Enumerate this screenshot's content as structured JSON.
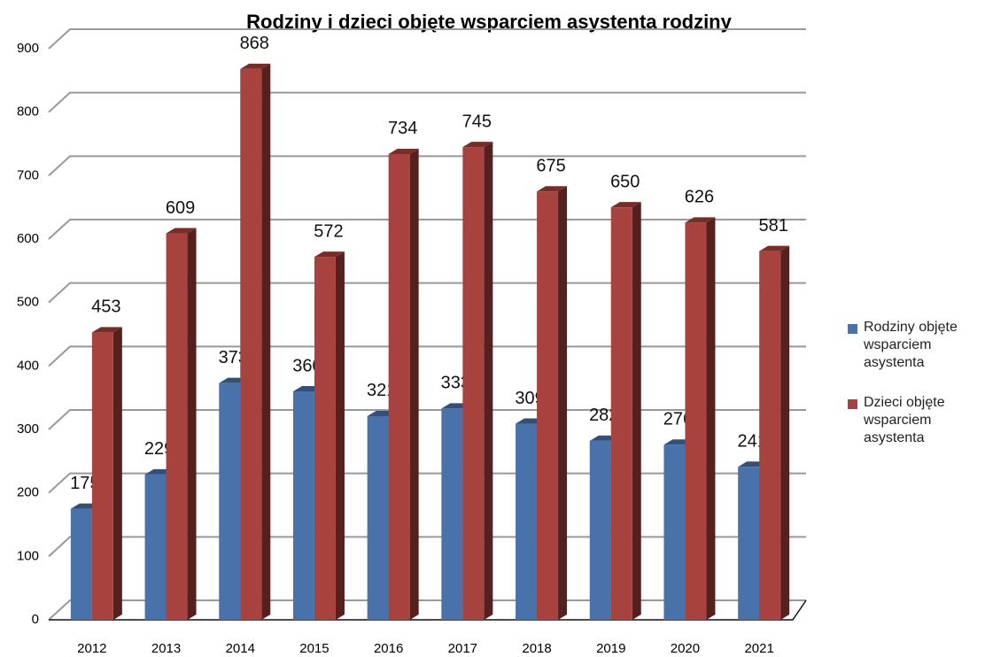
{
  "chart_data": {
    "type": "bar3d",
    "title": "Rodziny i dzieci objęte wsparciem asystenta rodziny",
    "categories": [
      "2012",
      "2013",
      "2014",
      "2015",
      "2016",
      "2017",
      "2018",
      "2019",
      "2020",
      "2021"
    ],
    "series": [
      {
        "name": "Rodziny objęte wsparciem asystenta",
        "color": "#4a72aa",
        "values": [
          175,
          229,
          373,
          360,
          321,
          333,
          309,
          282,
          276,
          241
        ]
      },
      {
        "name": "Dzieci objęte wsparciem asystenta",
        "color": "#a8423e",
        "values": [
          453,
          609,
          868,
          572,
          734,
          745,
          675,
          650,
          626,
          581
        ]
      }
    ],
    "ylim": [
      0,
      900
    ],
    "yticks": [
      0,
      100,
      200,
      300,
      400,
      500,
      600,
      700,
      800,
      900
    ],
    "grid": true,
    "legend": "right"
  }
}
